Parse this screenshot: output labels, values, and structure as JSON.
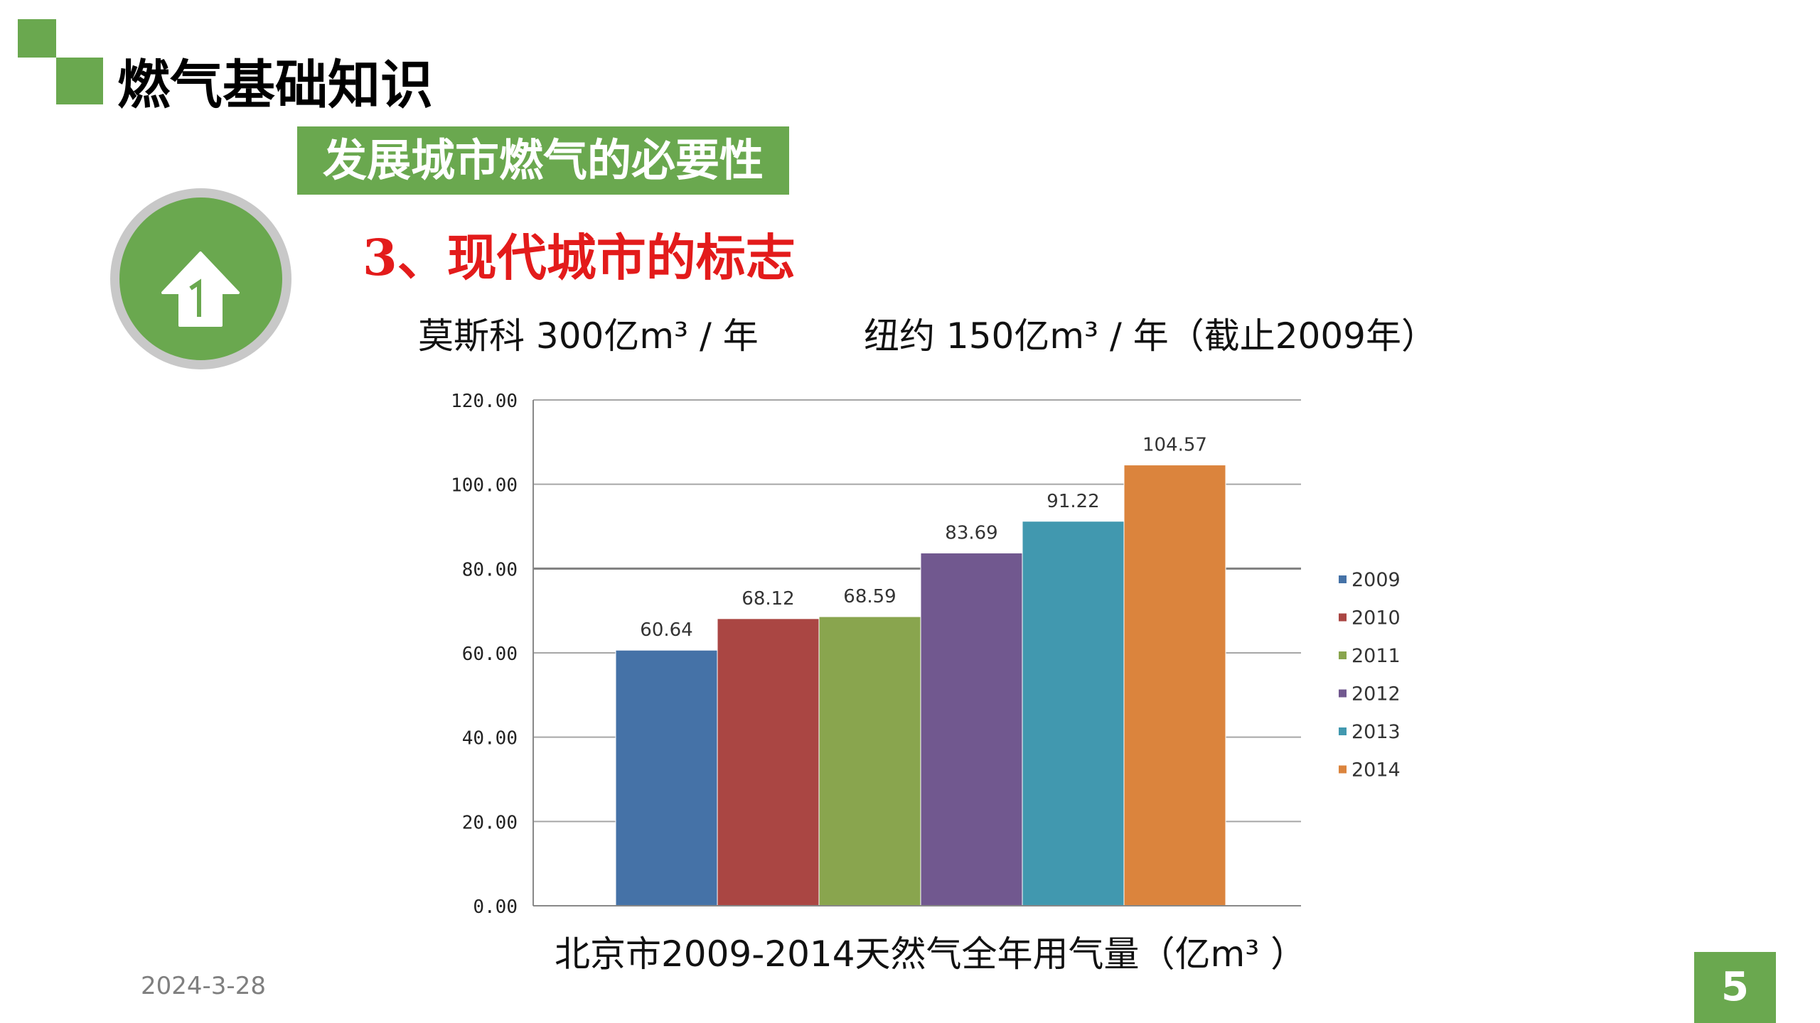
{
  "slide": {
    "title": "燃气基础知识",
    "section": "发展城市燃气的必要性",
    "point_title": "3、现代城市的标志",
    "stats": {
      "moscow": "莫斯科 300亿m³ / 年",
      "new_york": "纽约 150亿m³ / 年（截止2009年）"
    },
    "chart_caption": "北京市2009-2014天然气全年用气量（亿m³ ）",
    "date": "2024-3-28",
    "page_number": "5",
    "icon": "up-arrow-icon",
    "colors": {
      "accent_green": "#6aa84f",
      "point_title_red": "#e31b1b"
    }
  },
  "chart_data": {
    "type": "bar",
    "title": "",
    "xlabel": "",
    "ylabel": "",
    "categories": [
      "2009",
      "2010",
      "2011",
      "2012",
      "2013",
      "2014"
    ],
    "values": [
      60.64,
      68.12,
      68.59,
      83.69,
      91.22,
      104.57
    ],
    "value_labels": [
      "60.64",
      "68.12",
      "68.59",
      "83.69",
      "91.22",
      "104.57"
    ],
    "colors": [
      "#4572a7",
      "#aa4643",
      "#89a54e",
      "#71588f",
      "#4198af",
      "#db843d"
    ],
    "ylim": [
      0,
      120
    ],
    "yticks": [
      "0.00",
      "20.00",
      "40.00",
      "60.00",
      "80.00",
      "100.00",
      "120.00"
    ],
    "grid": true,
    "legend": {
      "position": "right",
      "entries": [
        "2009",
        "2010",
        "2011",
        "2012",
        "2013",
        "2014"
      ]
    }
  }
}
